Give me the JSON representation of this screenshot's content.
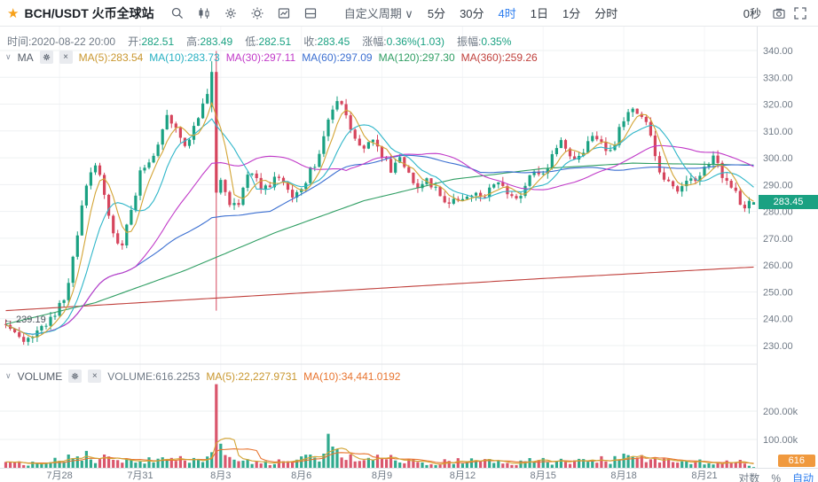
{
  "toolbar": {
    "title": "BCH/USDT 火币全球站",
    "periods": [
      {
        "label": "自定义周期 ∨",
        "cls": "tf dropdown"
      },
      {
        "label": "5分",
        "cls": "tf"
      },
      {
        "label": "30分",
        "cls": "tf"
      },
      {
        "label": "4时",
        "cls": "tf active"
      },
      {
        "label": "1日",
        "cls": "tf"
      },
      {
        "label": "1分",
        "cls": "tf"
      },
      {
        "label": "分时",
        "cls": "tf"
      }
    ],
    "countdown": "0秒"
  },
  "infobar": {
    "items": [
      {
        "label": "时间:",
        "value": "2020-08-22 20:00",
        "vstyle": "color:#707a86"
      },
      {
        "label": "开:",
        "value": "282.51",
        "vstyle": "color:#1aa182"
      },
      {
        "label": "高:",
        "value": "283.49",
        "vstyle": "color:#1aa182"
      },
      {
        "label": "低:",
        "value": "282.51",
        "vstyle": "color:#1aa182"
      },
      {
        "label": "收:",
        "value": "283.45",
        "vstyle": "color:#1aa182"
      },
      {
        "label": "涨幅:",
        "value": "0.36%(1.03)",
        "vstyle": "color:#1aa182"
      },
      {
        "label": "振幅:",
        "value": "0.35%",
        "vstyle": "color:#1aa182"
      }
    ]
  },
  "main_legend": {
    "name": "MA",
    "items": [
      {
        "text": "MA(5):283.54",
        "style": "color:#c9972f"
      },
      {
        "text": "MA(10):283.73",
        "style": "color:#27b0c2"
      },
      {
        "text": "MA(30):297.11",
        "style": "color:#c13ac8"
      },
      {
        "text": "MA(60):297.09",
        "style": "color:#3b6fd1"
      },
      {
        "text": "MA(120):297.30",
        "style": "color:#2f9e63"
      },
      {
        "text": "MA(360):259.26",
        "style": "color:#c0403c"
      }
    ]
  },
  "vol_legend": {
    "name": "VOLUME",
    "items": [
      {
        "text": "VOLUME:616.2253",
        "style": "color:#707a86"
      },
      {
        "text": "MA(5):22,227.9731",
        "style": "color:#c9972f"
      },
      {
        "text": "MA(10):34,441.0192",
        "style": "color:#e8742f"
      }
    ]
  },
  "badges": {
    "price": "283.45",
    "volume": "616"
  },
  "annotation": "← 239.19",
  "controls": {
    "log": "对数",
    "pct": "%",
    "auto": "自动"
  },
  "chart_data": {
    "type": "candlestick+volume",
    "symbol": "BCH/USDT",
    "exchange": "火币全球站",
    "interval": "4时",
    "last_candle": {
      "time": "2020-08-22 20:00",
      "open": 282.51,
      "high": 283.49,
      "low": 282.51,
      "close": 283.45,
      "change_pct": "0.36%",
      "amplitude": "0.35%"
    },
    "ma_values": {
      "ma5": 283.54,
      "ma10": 283.73,
      "ma30": 297.11,
      "ma60": 297.09,
      "ma120": 297.3,
      "ma360": 259.26
    },
    "volume_values": {
      "volume": 616.2253,
      "ma5": 22227.9731,
      "ma10": 34441.0192
    },
    "low_annotation": 239.19,
    "n": 168,
    "price_axis": {
      "min": 230,
      "max": 340,
      "step": 10
    },
    "price_ticks": [
      {
        "v": 340,
        "label": "340.00"
      },
      {
        "v": 330,
        "label": "330.00"
      },
      {
        "v": 320,
        "label": "320.00"
      },
      {
        "v": 310,
        "label": "310.00"
      },
      {
        "v": 300,
        "label": "300.00"
      },
      {
        "v": 290,
        "label": "290.00"
      },
      {
        "v": 280,
        "label": "280.00"
      },
      {
        "v": 270,
        "label": "270.00"
      },
      {
        "v": 260,
        "label": "260.00"
      },
      {
        "v": 250,
        "label": "250.00"
      },
      {
        "v": 240,
        "label": "240.00"
      },
      {
        "v": 230,
        "label": "230.00"
      }
    ],
    "vol_ticks": [
      {
        "v": 200000,
        "label": "200.00k"
      },
      {
        "v": 100000,
        "label": "100.00k"
      }
    ],
    "dates": [
      {
        "i": 12,
        "label": "7月28"
      },
      {
        "i": 30,
        "label": "7月31"
      },
      {
        "i": 48,
        "label": "8月3"
      },
      {
        "i": 66,
        "label": "8月6"
      },
      {
        "i": 84,
        "label": "8月9"
      },
      {
        "i": 102,
        "label": "8月12"
      },
      {
        "i": 120,
        "label": "8月15"
      },
      {
        "i": 138,
        "label": "8月18"
      },
      {
        "i": 156,
        "label": "8月21"
      }
    ],
    "price_anchors": [
      [
        0,
        239.19
      ],
      [
        2,
        234
      ],
      [
        5,
        232
      ],
      [
        8,
        237
      ],
      [
        11,
        241
      ],
      [
        14,
        252
      ],
      [
        16,
        272
      ],
      [
        18,
        290
      ],
      [
        20,
        297
      ],
      [
        22,
        287
      ],
      [
        24,
        272
      ],
      [
        26,
        267
      ],
      [
        28,
        281
      ],
      [
        30,
        294
      ],
      [
        32,
        299
      ],
      [
        34,
        305
      ],
      [
        36,
        317
      ],
      [
        38,
        311
      ],
      [
        40,
        305
      ],
      [
        42,
        311
      ],
      [
        44,
        319
      ],
      [
        46,
        331
      ],
      [
        47,
        334
      ],
      [
        48,
        291
      ],
      [
        50,
        284
      ],
      [
        52,
        283
      ],
      [
        54,
        295
      ],
      [
        56,
        291
      ],
      [
        58,
        288
      ],
      [
        60,
        293
      ],
      [
        62,
        290
      ],
      [
        64,
        286
      ],
      [
        66,
        289
      ],
      [
        68,
        295
      ],
      [
        70,
        301
      ],
      [
        72,
        315
      ],
      [
        74,
        321
      ],
      [
        76,
        316
      ],
      [
        78,
        307
      ],
      [
        80,
        302
      ],
      [
        82,
        307
      ],
      [
        84,
        300
      ],
      [
        86,
        296
      ],
      [
        88,
        300
      ],
      [
        90,
        294
      ],
      [
        92,
        290
      ],
      [
        94,
        293
      ],
      [
        96,
        288
      ],
      [
        98,
        283
      ],
      [
        100,
        286
      ],
      [
        102,
        283
      ],
      [
        104,
        287
      ],
      [
        106,
        284
      ],
      [
        108,
        288
      ],
      [
        110,
        292
      ],
      [
        112,
        287
      ],
      [
        114,
        284
      ],
      [
        116,
        290
      ],
      [
        118,
        296
      ],
      [
        120,
        294
      ],
      [
        122,
        300
      ],
      [
        124,
        306
      ],
      [
        126,
        302
      ],
      [
        128,
        300
      ],
      [
        130,
        305
      ],
      [
        132,
        308
      ],
      [
        134,
        301
      ],
      [
        136,
        306
      ],
      [
        138,
        314
      ],
      [
        140,
        320
      ],
      [
        142,
        316
      ],
      [
        144,
        309
      ],
      [
        146,
        295
      ],
      [
        148,
        290
      ],
      [
        150,
        287
      ],
      [
        152,
        292
      ],
      [
        154,
        290
      ],
      [
        156,
        296
      ],
      [
        158,
        300
      ],
      [
        160,
        293
      ],
      [
        162,
        288
      ],
      [
        164,
        284
      ],
      [
        165,
        280
      ],
      [
        166,
        282.5
      ],
      [
        167,
        283.45
      ]
    ],
    "key_candles": {
      "46": [
        319,
        336,
        317,
        332
      ],
      "47": [
        332,
        339.8,
        243,
        287
      ],
      "167": [
        282.51,
        283.49,
        282.51,
        283.45
      ]
    },
    "vol_anchors": [
      [
        0,
        13000
      ],
      [
        10,
        20000
      ],
      [
        14,
        32000
      ],
      [
        18,
        38000
      ],
      [
        22,
        30000
      ],
      [
        28,
        22000
      ],
      [
        34,
        30000
      ],
      [
        40,
        26000
      ],
      [
        45,
        35000
      ],
      [
        48,
        60000
      ],
      [
        52,
        25000
      ],
      [
        58,
        18000
      ],
      [
        64,
        20000
      ],
      [
        70,
        40000
      ],
      [
        74,
        45000
      ],
      [
        80,
        28000
      ],
      [
        84,
        38000
      ],
      [
        90,
        24000
      ],
      [
        96,
        20000
      ],
      [
        102,
        26000
      ],
      [
        108,
        20000
      ],
      [
        114,
        18000
      ],
      [
        120,
        26000
      ],
      [
        126,
        20000
      ],
      [
        132,
        24000
      ],
      [
        138,
        36000
      ],
      [
        142,
        30000
      ],
      [
        148,
        20000
      ],
      [
        154,
        22000
      ],
      [
        160,
        18000
      ],
      [
        165,
        20000
      ],
      [
        167,
        5000
      ]
    ],
    "key_volumes": {
      "45": 40000,
      "46": 55000,
      "47": 295000,
      "48": 85000,
      "49": 45000,
      "71": 50000,
      "72": 120000,
      "73": 75000,
      "167": 616
    },
    "ma120_anchors": [
      [
        0,
        238
      ],
      [
        20,
        246
      ],
      [
        40,
        258
      ],
      [
        60,
        272
      ],
      [
        80,
        284
      ],
      [
        100,
        292
      ],
      [
        120,
        296
      ],
      [
        140,
        298
      ],
      [
        167,
        297.3
      ]
    ],
    "ma360_anchors": [
      [
        0,
        243
      ],
      [
        40,
        247
      ],
      [
        80,
        251
      ],
      [
        120,
        255
      ],
      [
        167,
        259.26
      ]
    ],
    "colors": {
      "up": "#1aa182",
      "down": "#d6455d",
      "ma5": "#d3a434",
      "ma10": "#2fb6c9",
      "ma30": "#c13ac8",
      "ma60": "#3b6fd1",
      "ma120": "#2f9e63",
      "ma360": "#c0403c",
      "volma5": "#d3a434",
      "volma10": "#e8742f",
      "grid": "#eef0f2",
      "vgrid": "#f4f5f7",
      "axis": "#dfe2e6",
      "accent": "#2b7cee"
    }
  }
}
